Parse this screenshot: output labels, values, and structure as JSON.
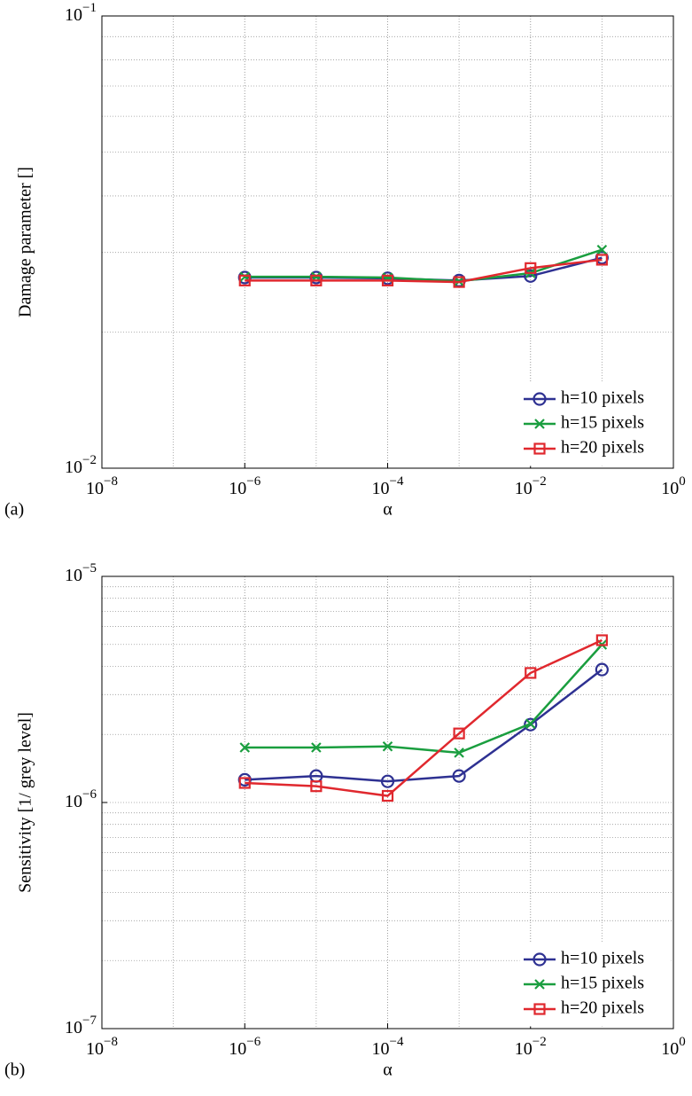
{
  "chart_data": [
    {
      "type": "line",
      "panel_label": "(a)",
      "x_label": "α",
      "y_label": "Damage parameter []",
      "x": [
        1e-06,
        1e-05,
        0.0001,
        0.001,
        0.01,
        0.1
      ],
      "x_log": true,
      "y_log": true,
      "grid": true,
      "minor_grid": true,
      "legend": "lower right",
      "xlim": [
        1e-08,
        1
      ],
      "ylim": [
        0.01,
        0.1
      ],
      "xticks": [
        {
          "value": 1e-08,
          "label": "10−8"
        },
        {
          "value": 1e-06,
          "label": "10−6"
        },
        {
          "value": 0.0001,
          "label": "10−4"
        },
        {
          "value": 0.01,
          "label": "10−2"
        },
        {
          "value": 1,
          "label": "100"
        }
      ],
      "yticks": [
        {
          "value": 0.01,
          "label": "10−2"
        },
        {
          "value": 0.1,
          "label": "10−1"
        }
      ],
      "series": [
        {
          "name": "h=10 pixels",
          "color": "#2e3192",
          "marker": "o",
          "values": [
            0.0264,
            0.0264,
            0.0263,
            0.026,
            0.0266,
            0.0292
          ]
        },
        {
          "name": "h=15 pixels",
          "color": "#1a9e3f",
          "marker": "x",
          "values": [
            0.0265,
            0.0265,
            0.0264,
            0.0259,
            0.027,
            0.0304
          ]
        },
        {
          "name": "h=20 pixels",
          "color": "#e0282e",
          "marker": "s",
          "values": [
            0.026,
            0.026,
            0.026,
            0.0258,
            0.0277,
            0.0289
          ]
        }
      ]
    },
    {
      "type": "line",
      "panel_label": "(b)",
      "x_label": "α",
      "y_label": "Sensitivity [1/ grey level]",
      "x": [
        1e-06,
        1e-05,
        0.0001,
        0.001,
        0.01,
        0.1
      ],
      "x_log": true,
      "y_log": true,
      "grid": true,
      "minor_grid": true,
      "legend": "lower right",
      "xlim": [
        1e-08,
        1
      ],
      "ylim": [
        1e-07,
        1e-05
      ],
      "xticks": [
        {
          "value": 1e-08,
          "label": "10−8"
        },
        {
          "value": 1e-06,
          "label": "10−6"
        },
        {
          "value": 0.0001,
          "label": "10−4"
        },
        {
          "value": 0.01,
          "label": "10−2"
        },
        {
          "value": 1,
          "label": "100"
        }
      ],
      "yticks": [
        {
          "value": 1e-07,
          "label": "10−7"
        },
        {
          "value": 1e-06,
          "label": "10−6"
        },
        {
          "value": 1e-05,
          "label": "10−5"
        }
      ],
      "series": [
        {
          "name": "h=10 pixels",
          "color": "#2e3192",
          "marker": "o",
          "values": [
            1.26e-06,
            1.31e-06,
            1.24e-06,
            1.31e-06,
            2.21e-06,
            3.87e-06
          ]
        },
        {
          "name": "h=15 pixels",
          "color": "#1a9e3f",
          "marker": "x",
          "values": [
            1.75e-06,
            1.75e-06,
            1.77e-06,
            1.66e-06,
            2.23e-06,
            4.99e-06
          ]
        },
        {
          "name": "h=20 pixels",
          "color": "#e0282e",
          "marker": "s",
          "values": [
            1.22e-06,
            1.18e-06,
            1.07e-06,
            2.02e-06,
            3.74e-06,
            5.22e-06
          ]
        }
      ]
    }
  ]
}
